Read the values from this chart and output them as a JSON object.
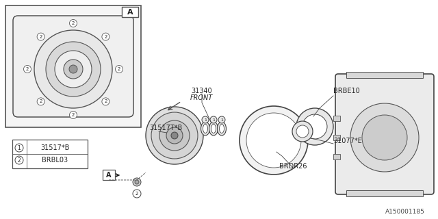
{
  "bg_color": "#ffffff",
  "line_color": "#333333",
  "text_color": "#222222",
  "title_text": "A150001185",
  "front_label": "FRONT",
  "legend1_num": "1",
  "legend1_part": "31517*B",
  "legend2_num": "2",
  "legend2_part": "BRBL03",
  "label_31340": "31340",
  "label_BRBE10": "BRBE10",
  "label_31517TB": "31517T*B",
  "label_31077E": "31077*E",
  "label_BRDR26": "BRDR26",
  "label_A": "A"
}
